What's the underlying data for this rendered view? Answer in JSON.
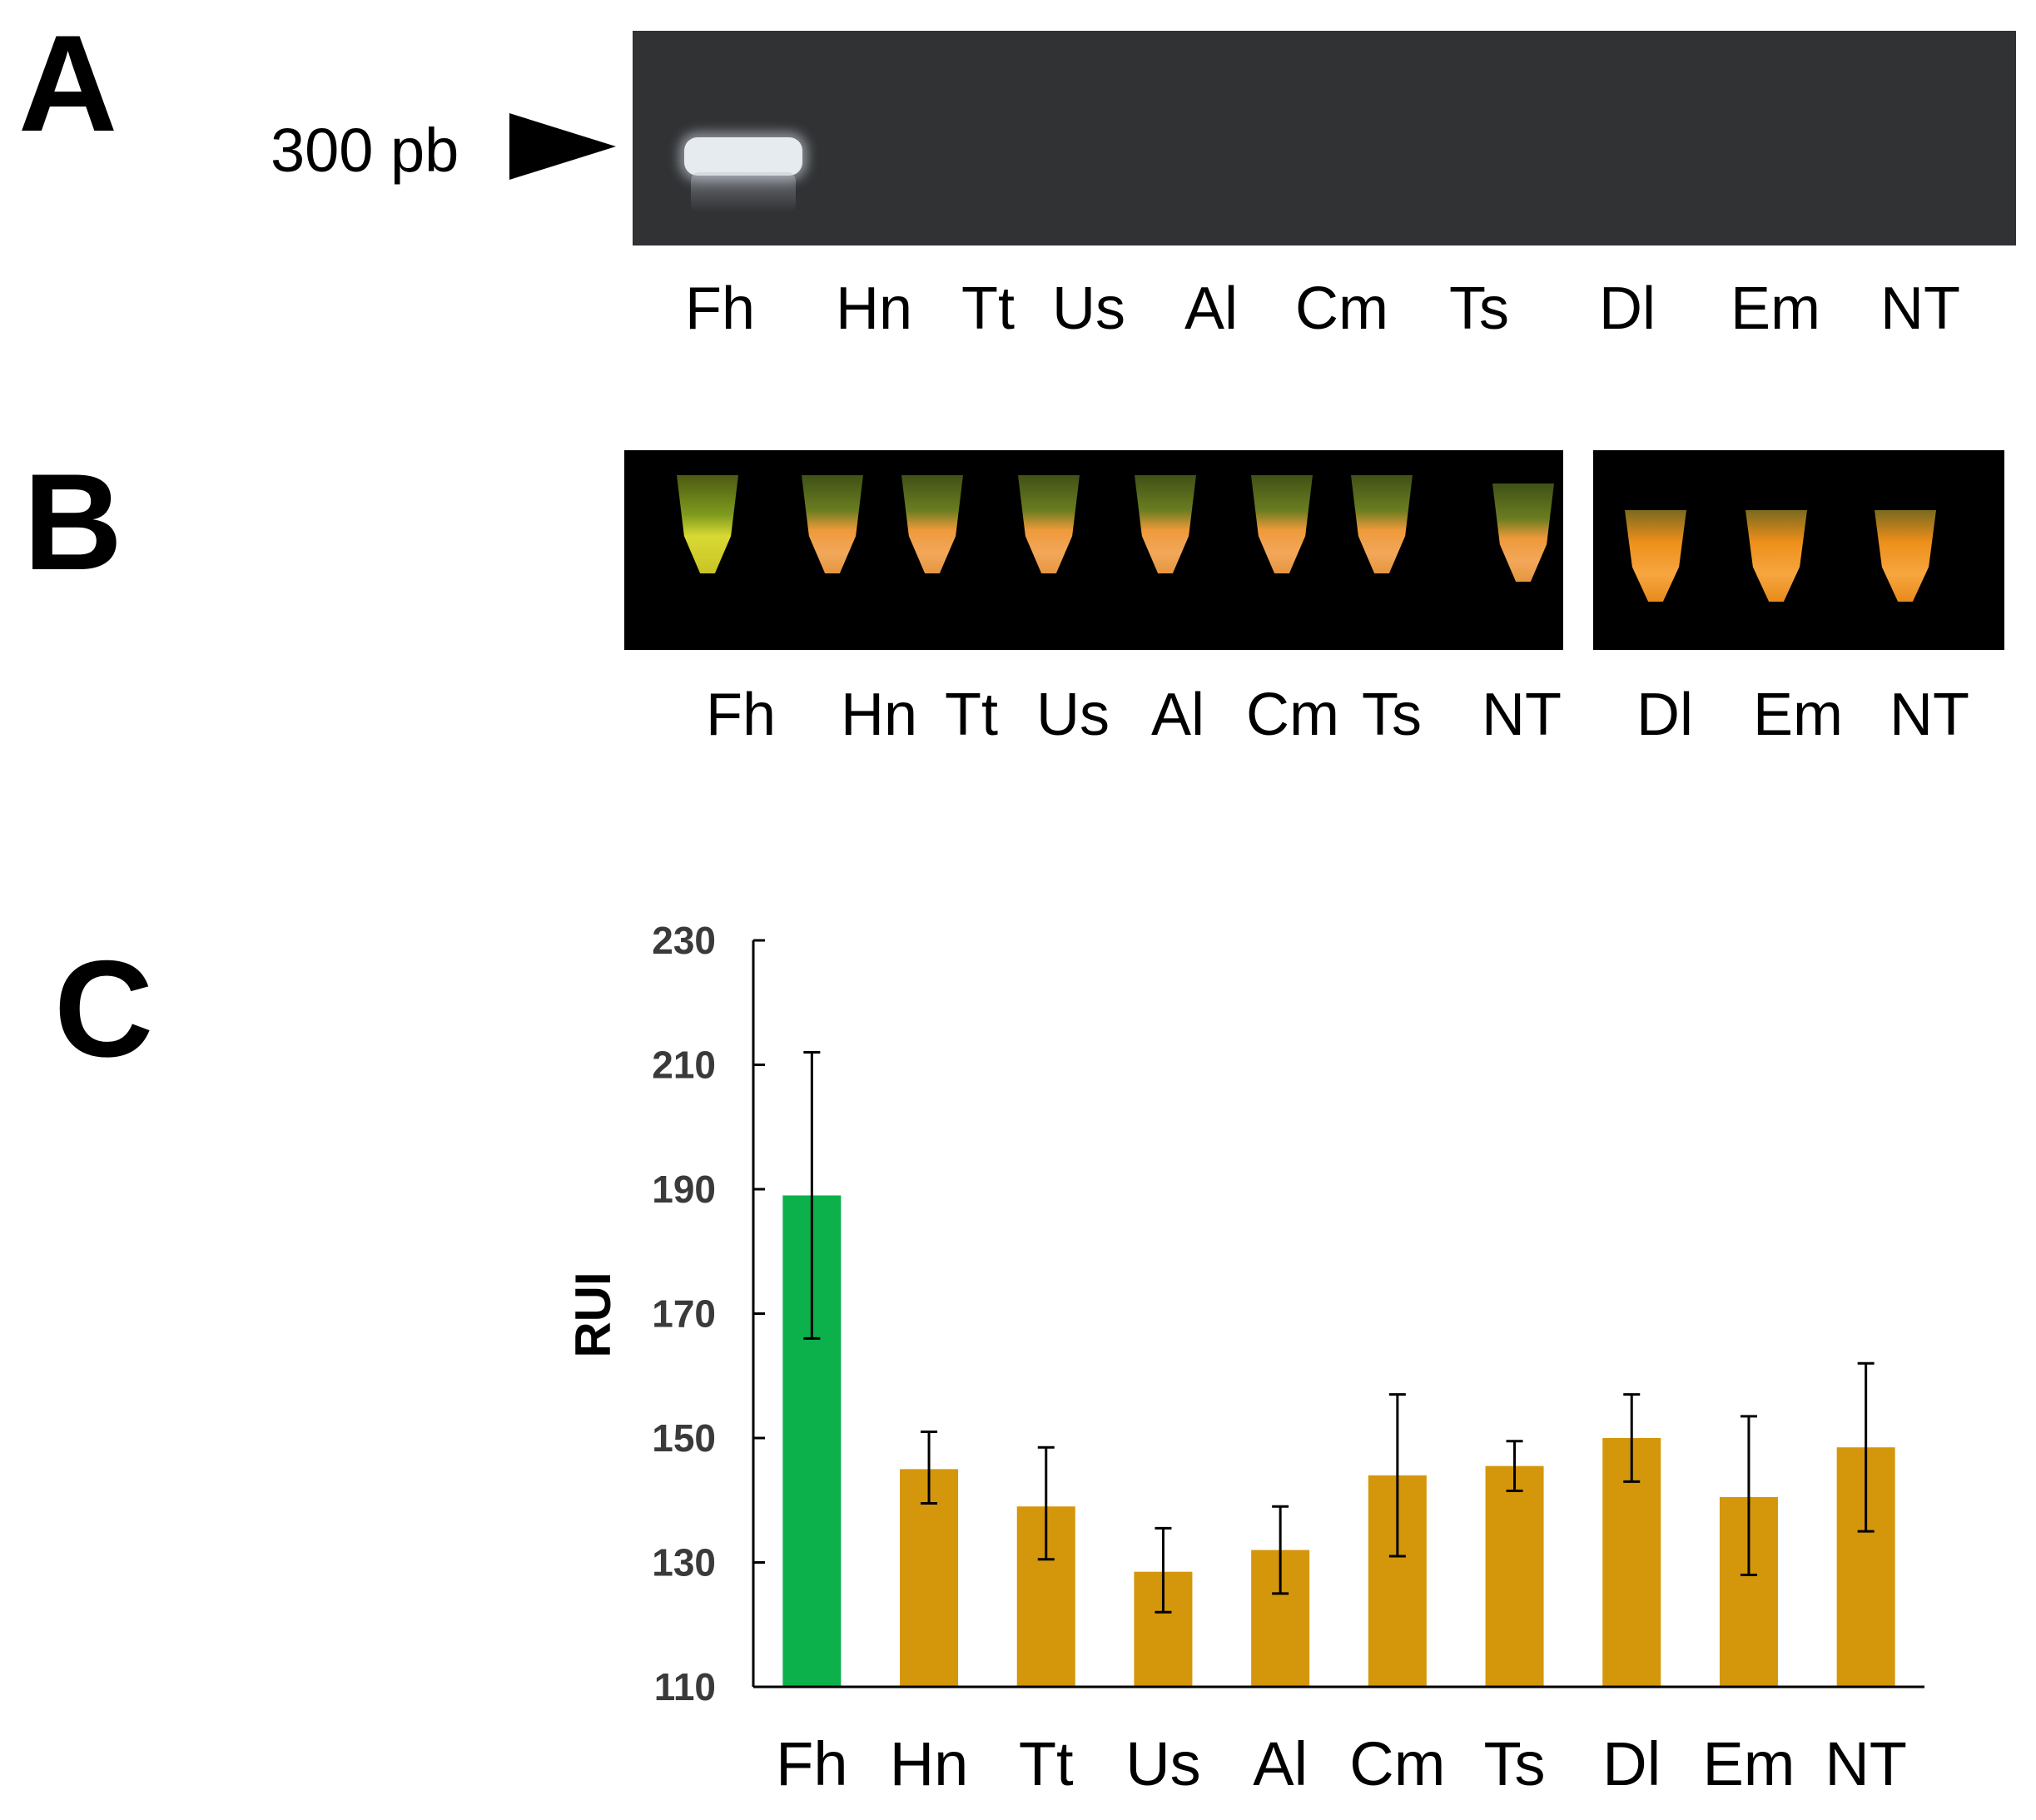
{
  "panels": {
    "a": {
      "letter": "A",
      "marker_label": "300 pb"
    },
    "b": {
      "letter": "B"
    },
    "c": {
      "letter": "C"
    }
  },
  "lanes_a": [
    "Fh",
    "Hn",
    "Tt",
    "Us",
    "Al",
    "Cm",
    "Ts",
    "Dl",
    "Em",
    "NT"
  ],
  "lanes_b": [
    "Fh",
    "Hn",
    "Tt",
    "Us",
    "Al",
    "Cm",
    "Ts",
    "NT",
    "Dl",
    "Em",
    "NT"
  ],
  "colors": {
    "gel_background": "#303234",
    "band": "#e6ebf0",
    "positive_bar": "#0db14b",
    "negative_bar": "#d4960a",
    "error_bar": "#000000"
  },
  "chart_data": {
    "type": "bar",
    "categories": [
      "Fh",
      "Hn",
      "Tt",
      "Us",
      "Al",
      "Cm",
      "Ts",
      "Dl",
      "Em",
      "NT"
    ],
    "values": [
      189,
      145,
      139,
      128.5,
      132,
      144,
      145.5,
      150,
      140.5,
      148.5
    ],
    "error_low": [
      166,
      139.5,
      130.5,
      122,
      125,
      131,
      141.5,
      143,
      128,
      135
    ],
    "error_high": [
      212,
      151,
      148.5,
      135.5,
      139,
      157,
      149.5,
      157,
      153.5,
      162
    ],
    "title": "",
    "xlabel": "",
    "ylabel": "RUI",
    "ylim": [
      110,
      230
    ],
    "yticks": [
      110,
      130,
      150,
      170,
      190,
      210,
      230
    ],
    "grid": false,
    "legend": "none"
  }
}
